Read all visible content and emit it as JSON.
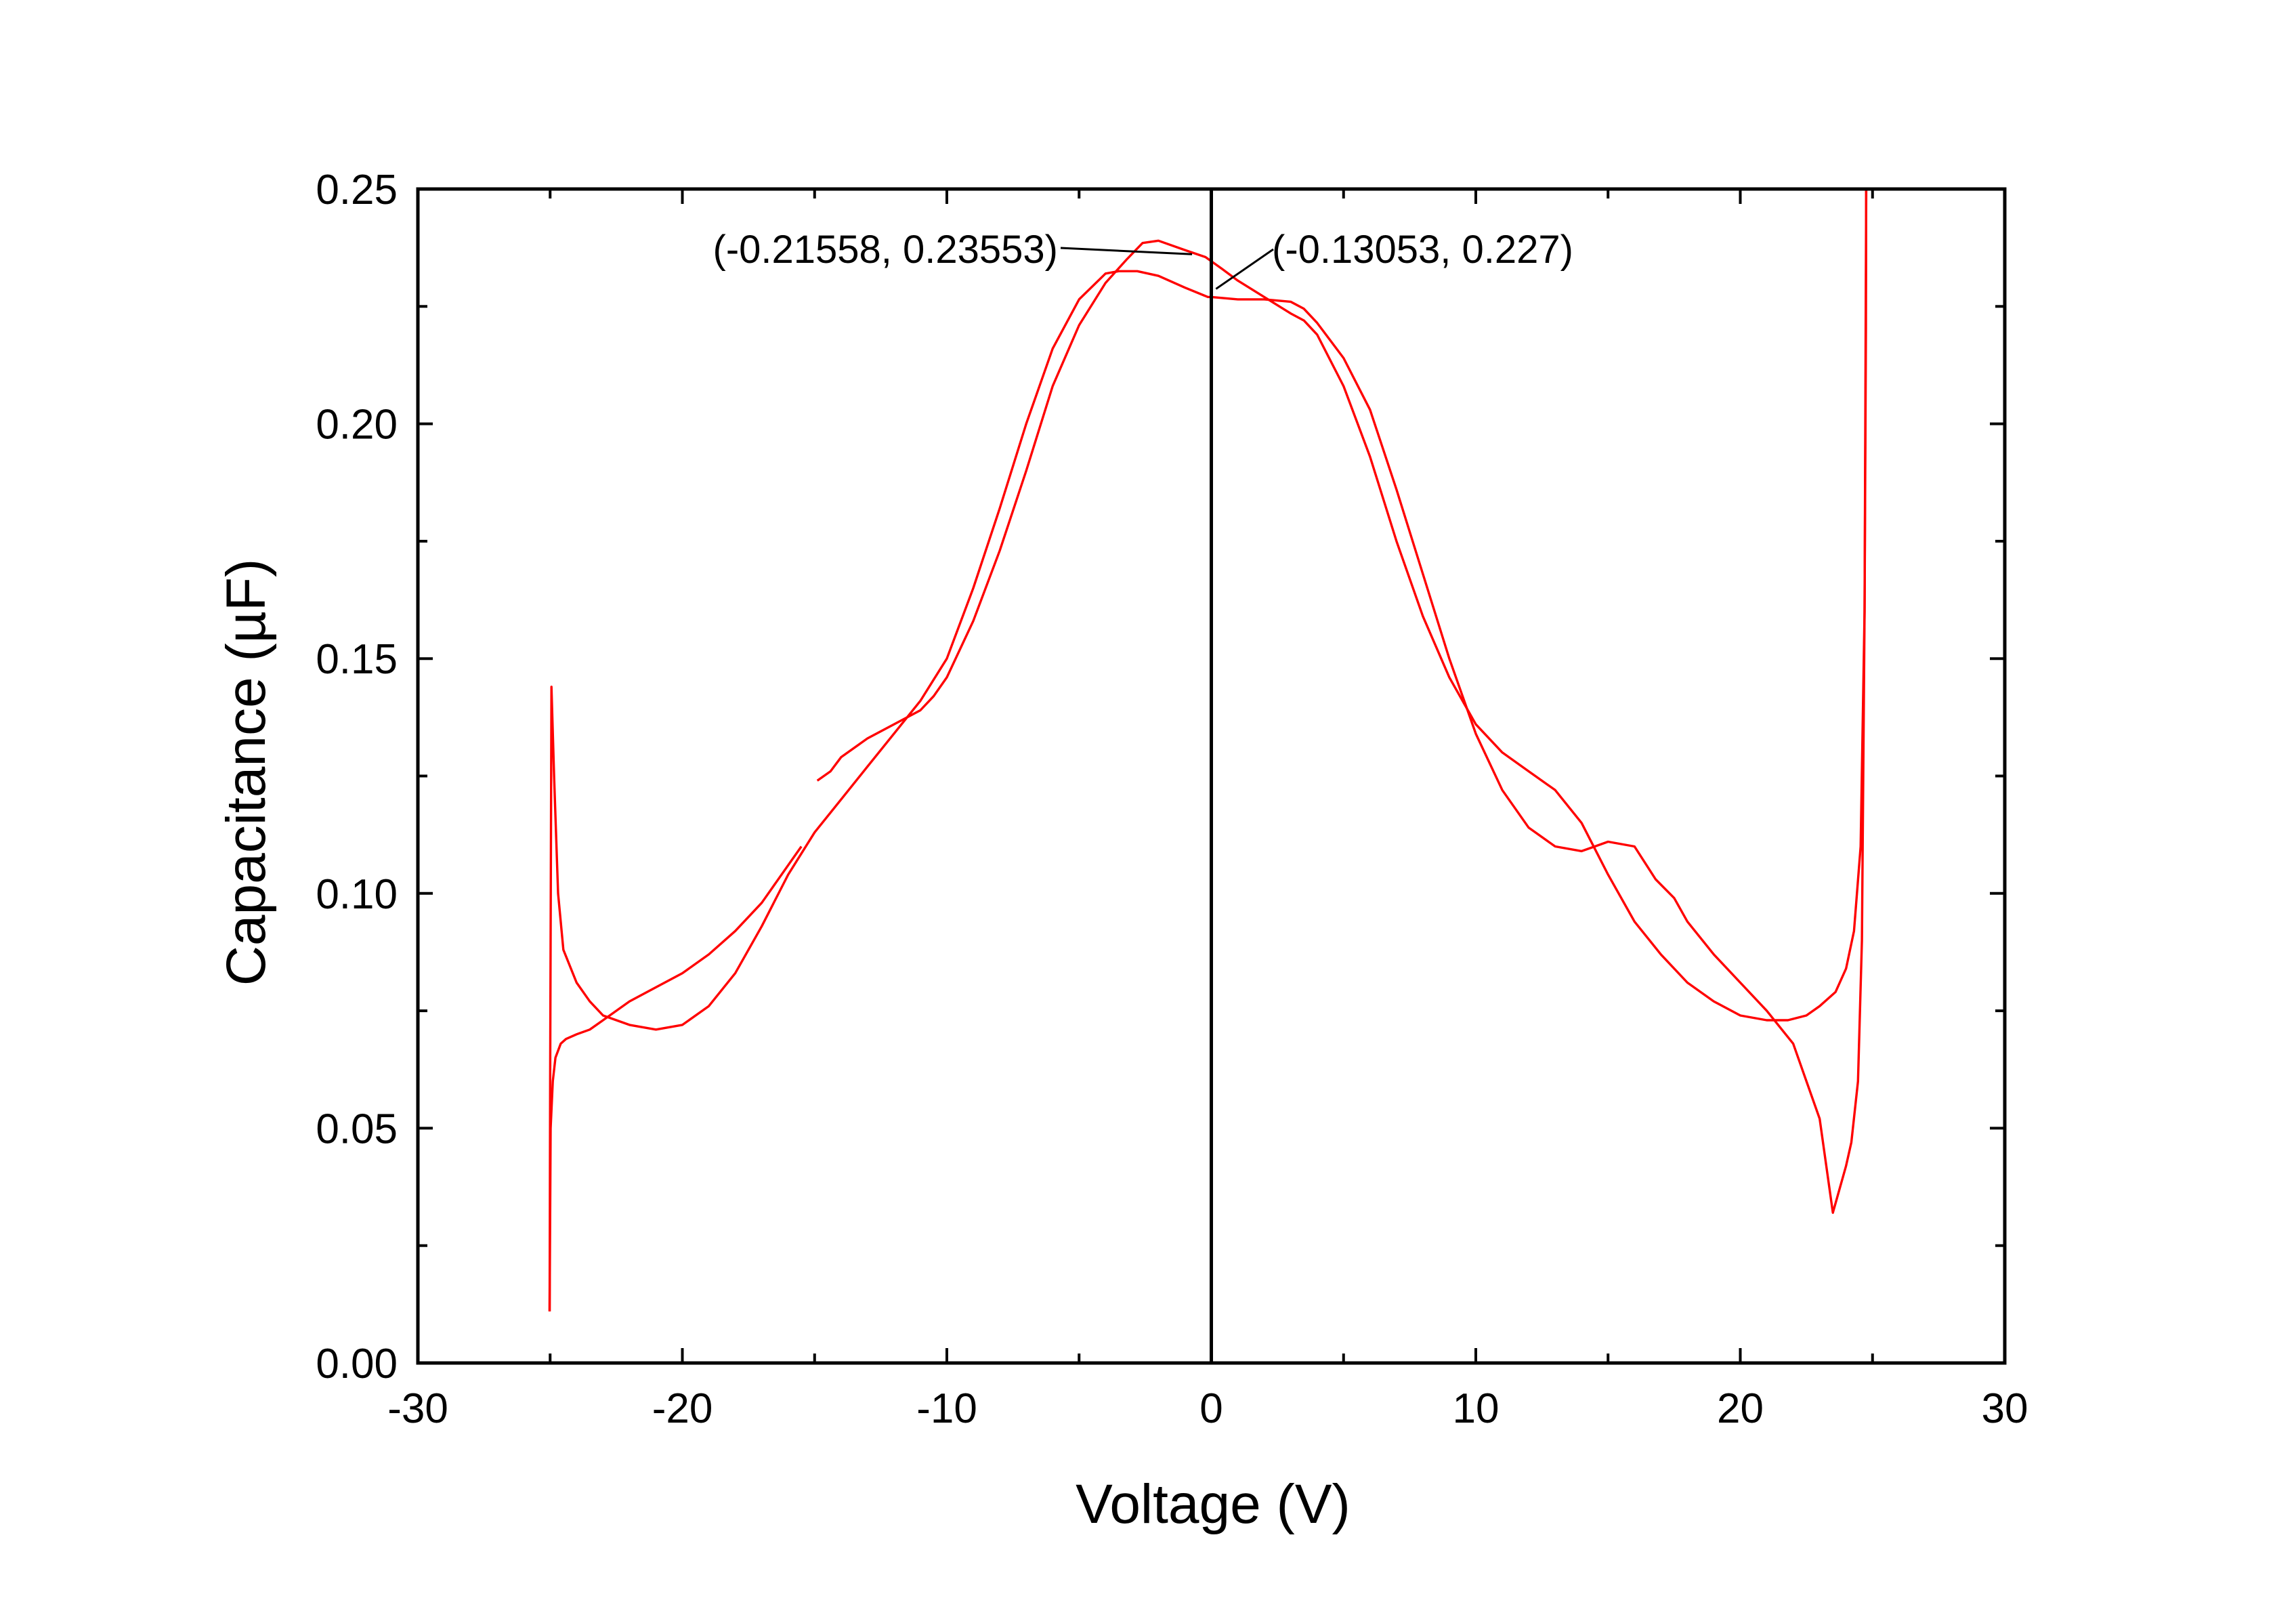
{
  "chart_data": {
    "type": "line",
    "title": "",
    "xlabel": "Voltage (V)",
    "ylabel": "Capacitance (µF)",
    "xlim": [
      -30,
      30
    ],
    "ylim": [
      0,
      0.25
    ],
    "xticks": [
      -30,
      -20,
      -10,
      0,
      10,
      20,
      30
    ],
    "xtick_labels": [
      "-30",
      "-20",
      "-10",
      "0",
      "10",
      "20",
      "30"
    ],
    "yticks": [
      0,
      0.05,
      0.1,
      0.15,
      0.2,
      0.25
    ],
    "ytick_labels": [
      "0.00",
      "0.05",
      "0.10",
      "0.15",
      "0.20",
      "0.25"
    ],
    "grid": false,
    "legend": "none",
    "colors": {
      "series": "#ff0000",
      "axes": "#000000"
    },
    "zero_line_x": 0,
    "series": [
      {
        "color": "#ff0000",
        "x": [
          -14.9,
          -14.4,
          -14,
          -13,
          -12,
          -11,
          -10.5,
          -10,
          -9,
          -8,
          -7,
          -6,
          -5,
          -4,
          -3.2,
          -2.6,
          -2,
          -1,
          -0.22,
          0.4,
          1,
          2,
          3,
          3.5,
          4,
          5,
          6,
          7,
          8,
          9,
          10,
          11,
          12,
          13,
          14,
          15,
          16,
          17,
          18,
          19,
          20,
          21,
          21.8,
          22.5,
          23,
          23.6,
          24,
          24.3,
          24.55,
          24.7,
          24.75,
          24.76
        ],
        "y": [
          0.124,
          0.126,
          0.129,
          0.133,
          0.136,
          0.139,
          0.142,
          0.146,
          0.158,
          0.173,
          0.19,
          0.208,
          0.221,
          0.23,
          0.235,
          0.2385,
          0.239,
          0.237,
          0.2355,
          0.233,
          0.2305,
          0.227,
          0.2235,
          0.222,
          0.219,
          0.208,
          0.193,
          0.175,
          0.159,
          0.146,
          0.136,
          0.13,
          0.126,
          0.122,
          0.115,
          0.104,
          0.094,
          0.087,
          0.081,
          0.077,
          0.074,
          0.073,
          0.073,
          0.074,
          0.076,
          0.079,
          0.084,
          0.092,
          0.11,
          0.16,
          0.22,
          0.25
        ]
      },
      {
        "color": "#ff0000",
        "x": [
          24.76,
          24.74,
          24.7,
          24.6,
          24.45,
          24.2,
          24,
          23.5,
          23,
          22,
          21,
          20,
          19,
          18,
          17.5,
          16.8,
          16,
          15,
          14.5,
          14,
          13,
          12,
          11,
          10,
          9,
          8,
          7,
          6,
          5,
          4,
          3.5,
          3,
          2,
          1,
          0,
          -0.13,
          -1,
          -2,
          -2.8,
          -3.5,
          -4,
          -5,
          -6,
          -7,
          -8,
          -9,
          -10,
          -11,
          -12,
          -13,
          -14,
          -15,
          -16,
          -17,
          -18,
          -19,
          -20,
          -21,
          -22,
          -23,
          -23.5,
          -24,
          -24.5,
          -24.7,
          -24.85,
          -24.95,
          -25,
          -25.02
        ],
        "y": [
          0.25,
          0.22,
          0.16,
          0.09,
          0.06,
          0.047,
          0.042,
          0.032,
          0.052,
          0.068,
          0.075,
          0.081,
          0.087,
          0.094,
          0.099,
          0.103,
          0.11,
          0.111,
          0.11,
          0.109,
          0.11,
          0.114,
          0.122,
          0.134,
          0.15,
          0.168,
          0.186,
          0.203,
          0.214,
          0.2215,
          0.2245,
          0.226,
          0.2265,
          0.2265,
          0.227,
          0.227,
          0.229,
          0.2315,
          0.2325,
          0.2325,
          0.232,
          0.2265,
          0.216,
          0.2,
          0.182,
          0.165,
          0.15,
          0.141,
          0.134,
          0.127,
          0.12,
          0.113,
          0.104,
          0.093,
          0.083,
          0.076,
          0.072,
          0.071,
          0.072,
          0.074,
          0.077,
          0.081,
          0.088,
          0.1,
          0.125,
          0.144,
          0.06,
          0.011
        ]
      },
      {
        "color": "#ff0000",
        "x": [
          -25.02,
          -24.98,
          -24.9,
          -24.8,
          -24.6,
          -24.4,
          -24,
          -23.5,
          -23,
          -22,
          -21,
          -20,
          -19,
          -18,
          -17,
          -16,
          -15.5
        ],
        "y": [
          0.011,
          0.05,
          0.06,
          0.065,
          0.068,
          0.069,
          0.07,
          0.071,
          0.073,
          0.077,
          0.08,
          0.083,
          0.087,
          0.092,
          0.098,
          0.106,
          0.11
        ]
      }
    ],
    "annotations": [
      {
        "text": "(-0.21558, 0.23553)",
        "x": -0.21558,
        "y": 0.23553
      },
      {
        "text": "(-0.13053, 0.227)",
        "x": -0.13053,
        "y": 0.227
      }
    ]
  }
}
